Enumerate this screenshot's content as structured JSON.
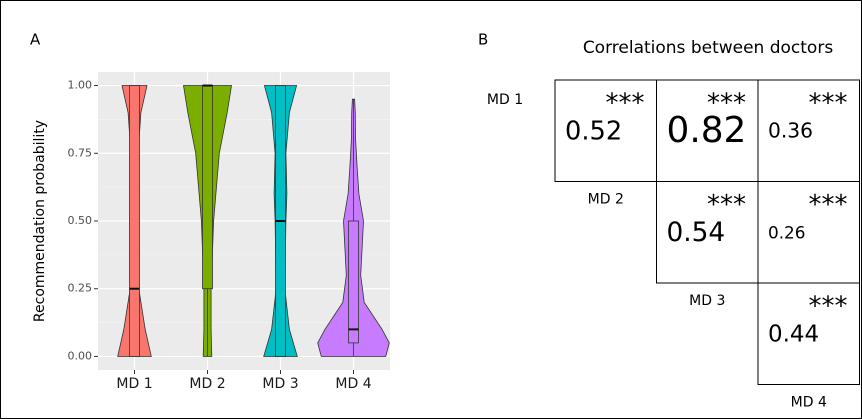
{
  "chart_data": [
    {
      "type": "violin",
      "panel": "A",
      "ylabel": "Recommendation probability",
      "categories": [
        "MD 1",
        "MD 2",
        "MD 3",
        "MD 4"
      ],
      "ylim": [
        -0.05,
        1.05
      ],
      "yticks": [
        {
          "value": 0,
          "label": "0.00"
        },
        {
          "value": 0.25,
          "label": "0.25"
        },
        {
          "value": 0.5,
          "label": "0.50"
        },
        {
          "value": 0.75,
          "label": "0.75"
        },
        {
          "value": 1,
          "label": "1.00"
        }
      ],
      "grid": true,
      "series": [
        {
          "name": "MD 1",
          "color": "#f8766d",
          "q1": 0,
          "median": 0.25,
          "q3": 1,
          "whisker": [
            0,
            1
          ],
          "density_y": [
            0,
            0.1,
            0.25,
            0.5,
            0.75,
            0.9,
            1
          ],
          "density": [
            0.47,
            0.3,
            0.12,
            0.08,
            0.1,
            0.18,
            0.35
          ]
        },
        {
          "name": "MD 2",
          "color": "#7cae00",
          "q1": 0.25,
          "median": 1,
          "q3": 1,
          "whisker": [
            0,
            1
          ],
          "density_y": [
            0,
            0.1,
            0.25,
            0.5,
            0.75,
            0.9,
            1
          ],
          "density": [
            0.12,
            0.1,
            0.1,
            0.17,
            0.33,
            0.55,
            0.67
          ]
        },
        {
          "name": "MD 3",
          "color": "#00bfc4",
          "q1": 0,
          "median": 0.5,
          "q3": 1,
          "whisker": [
            0,
            1
          ],
          "density_y": [
            0,
            0.1,
            0.25,
            0.5,
            0.6,
            0.75,
            0.9,
            1
          ],
          "density": [
            0.47,
            0.25,
            0.12,
            0.15,
            0.18,
            0.15,
            0.25,
            0.45
          ]
        },
        {
          "name": "MD 4",
          "color": "#c77cff",
          "q1": 0.05,
          "median": 0.1,
          "q3": 0.5,
          "whisker": [
            0,
            0.95
          ],
          "density_y": [
            0,
            0.05,
            0.1,
            0.2,
            0.3,
            0.4,
            0.5,
            0.6,
            0.7,
            0.8,
            0.9,
            0.95
          ],
          "density": [
            0.9,
            1,
            0.8,
            0.3,
            0.2,
            0.24,
            0.28,
            0.15,
            0.1,
            0.06,
            0.05,
            0.03
          ]
        }
      ]
    },
    {
      "type": "correlation",
      "panel": "B",
      "title": "Correlations between doctors",
      "labels": [
        "MD 1",
        "MD 2",
        "MD 3",
        "MD 4"
      ],
      "values": [
        [
          0.52,
          0.82,
          0.36
        ],
        [
          null,
          0.54,
          0.26
        ],
        [
          null,
          null,
          0.44
        ]
      ],
      "significance": [
        [
          "***",
          "***",
          "***"
        ],
        [
          null,
          "***",
          "***"
        ],
        [
          null,
          null,
          "***"
        ]
      ],
      "star_color": "#f0607a"
    }
  ]
}
